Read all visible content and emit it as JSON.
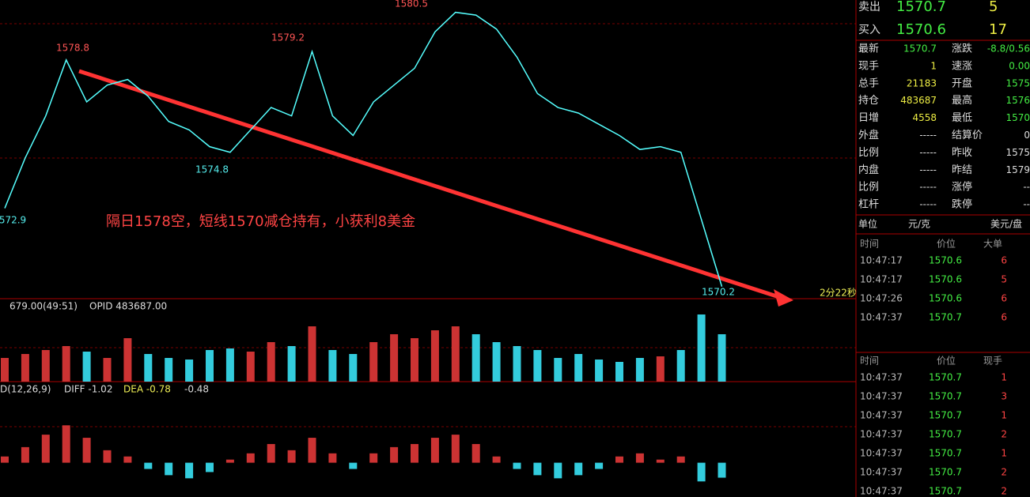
{
  "chart": {
    "type": "line",
    "color": "#5ff",
    "ylim": [
      1569.97,
      1580.64
    ],
    "closes": [
      1573.2,
      1575,
      1576.5,
      1578.5,
      1577,
      1577.6,
      1577.8,
      1577.2,
      1576.3,
      1576,
      1575.4,
      1575.2,
      1576,
      1576.8,
      1576.5,
      1578.8,
      1576.5,
      1575.8,
      1577,
      1577.6,
      1578.2,
      1579.5,
      1580.2,
      1580.1,
      1579.6,
      1578.6,
      1577.3,
      1576.8,
      1576.6,
      1576.2,
      1575.8,
      1575.3,
      1575.4,
      1575.2,
      1572.8,
      1570.4
    ],
    "price_labels": [
      "1580.5",
      "1578.8",
      "1579.2",
      "1574.8",
      "572.9",
      "1570.2"
    ],
    "annotation": "隔日1578空，短线1570减仓持有，小获利8美金",
    "timer": "2分22秒",
    "volume_header": [
      "679.00(49:51)",
      "OPID 483687.00"
    ],
    "volume_ylim": [
      0,
      100
    ],
    "volumes": [
      30,
      35,
      40,
      45,
      38,
      30,
      55,
      35,
      30,
      28,
      40,
      42,
      38,
      50,
      45,
      70,
      40,
      35,
      50,
      60,
      55,
      65,
      70,
      60,
      50,
      45,
      40,
      30,
      35,
      28,
      25,
      30,
      32,
      40,
      85,
      60
    ],
    "macd_header": [
      "D(12,26,9)",
      "DIFF -1.02",
      "DEA -0.78",
      "-0.48"
    ],
    "macd_ylim": [
      -1.1,
      2.5
    ],
    "macd": [
      0.2,
      0.5,
      0.9,
      1.2,
      0.8,
      0.4,
      0.2,
      -0.2,
      -0.4,
      -0.5,
      -0.3,
      0.1,
      0.3,
      0.6,
      0.4,
      0.8,
      0.3,
      -0.2,
      0.3,
      0.5,
      0.6,
      0.8,
      0.9,
      0.6,
      0.2,
      -0.2,
      -0.4,
      -0.5,
      -0.4,
      -0.2,
      0.2,
      0.3,
      0.1,
      0.2,
      -0.6,
      -0.48
    ]
  },
  "panel": {
    "quotes": [
      [
        "卖出",
        "1570.7",
        "5"
      ],
      [
        "买入",
        "1570.6",
        "17"
      ]
    ],
    "stats": [
      [
        "最新",
        "1570.7",
        "涨跌",
        "-8.8/0.56"
      ],
      [
        "现手",
        "1",
        "速涨",
        "0.00"
      ],
      [
        "总手",
        "21183",
        "开盘",
        "1575"
      ],
      [
        "持仓",
        "483687",
        "最高",
        "1576"
      ],
      [
        "日增",
        "4558",
        "最低",
        "1570"
      ],
      [
        "外盘",
        "-----",
        "结算价",
        "0"
      ],
      [
        "比例",
        "-----",
        "昨收",
        "1575"
      ],
      [
        "内盘",
        "-----",
        "昨结",
        "1579"
      ],
      [
        "比例",
        "-----",
        "涨停",
        "--"
      ],
      [
        "杠杆",
        "-----",
        "跌停",
        "--"
      ]
    ],
    "unit": [
      "单位",
      "元/克",
      "美元/盘"
    ],
    "big_header": [
      "时间",
      "价位",
      "大单"
    ],
    "big_rows": [
      [
        "10:47:17",
        "1570.6",
        "6"
      ],
      [
        "10:47:17",
        "1570.6",
        "5"
      ],
      [
        "10:47:26",
        "1570.6",
        "6"
      ],
      [
        "10:47:37",
        "1570.7",
        "6"
      ]
    ],
    "tick_header": [
      "时间",
      "价位",
      "现手"
    ],
    "tick_rows": [
      [
        "10:47:37",
        "1570.7",
        "1"
      ],
      [
        "10:47:37",
        "1570.7",
        "3"
      ],
      [
        "10:47:37",
        "1570.7",
        "1"
      ],
      [
        "10:47:37",
        "1570.7",
        "2"
      ],
      [
        "10:47:37",
        "1570.7",
        "1"
      ],
      [
        "10:47:37",
        "1570.7",
        "2"
      ],
      [
        "10:47:37",
        "1570.7",
        "2"
      ]
    ]
  }
}
